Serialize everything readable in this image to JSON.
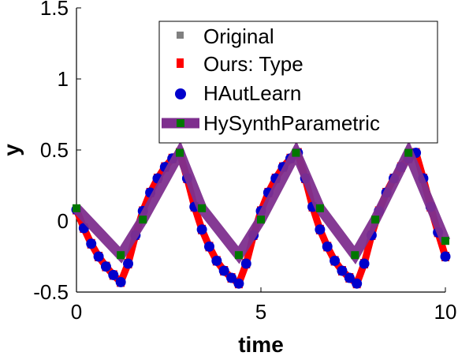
{
  "chart_data": {
    "type": "line",
    "title": "",
    "xlabel": "time",
    "ylabel": "y",
    "xlim": [
      0,
      10
    ],
    "ylim": [
      -0.5,
      1.5
    ],
    "xticks": [
      "0",
      "5",
      "10"
    ],
    "yticks": [
      "-0.5",
      "0",
      "0.5",
      "1",
      "1.5"
    ],
    "grid": false,
    "legend_position": "top-right",
    "series": [
      {
        "name": "Original",
        "color": "#808080",
        "marker": "square",
        "x": [
          0,
          0.2,
          0.4,
          0.6,
          0.8,
          1.0,
          1.2,
          1.4,
          1.6,
          1.8,
          2.0,
          2.2,
          2.4,
          2.6,
          2.8,
          3.0,
          3.2,
          3.4,
          3.6,
          3.8,
          4.0,
          4.2,
          4.4,
          4.6,
          4.8,
          5.0,
          5.2,
          5.4,
          5.6,
          5.8,
          6.0,
          6.2,
          6.4,
          6.6,
          6.8,
          7.0,
          7.2,
          7.4,
          7.6,
          7.8,
          8.0,
          8.2,
          8.4,
          8.6,
          8.8,
          9.0,
          9.2,
          9.4,
          9.6,
          9.8,
          10.0
        ],
        "y": [
          0.08,
          -0.05,
          -0.16,
          -0.25,
          -0.32,
          -0.38,
          -0.43,
          -0.3,
          -0.1,
          0.07,
          0.2,
          0.3,
          0.38,
          0.44,
          0.48,
          0.3,
          0.1,
          -0.06,
          -0.18,
          -0.28,
          -0.35,
          -0.4,
          -0.44,
          -0.3,
          -0.1,
          0.07,
          0.2,
          0.3,
          0.38,
          0.44,
          0.48,
          0.3,
          0.1,
          -0.06,
          -0.18,
          -0.28,
          -0.35,
          -0.4,
          -0.44,
          -0.3,
          -0.1,
          0.07,
          0.2,
          0.3,
          0.38,
          0.44,
          0.48,
          0.3,
          0.1,
          -0.08,
          -0.25
        ]
      },
      {
        "name": "Ours: Type",
        "color": "#ff0000",
        "marker": "square",
        "x": [
          0,
          0.2,
          0.4,
          0.6,
          0.8,
          1.0,
          1.2,
          1.4,
          1.6,
          1.8,
          2.0,
          2.2,
          2.4,
          2.6,
          2.8,
          3.0,
          3.2,
          3.4,
          3.6,
          3.8,
          4.0,
          4.2,
          4.4,
          4.6,
          4.8,
          5.0,
          5.2,
          5.4,
          5.6,
          5.8,
          6.0,
          6.2,
          6.4,
          6.6,
          6.8,
          7.0,
          7.2,
          7.4,
          7.6,
          7.8,
          8.0,
          8.2,
          8.4,
          8.6,
          8.8,
          9.0,
          9.2,
          9.4,
          9.6,
          9.8,
          10.0
        ],
        "y": [
          0.08,
          -0.05,
          -0.16,
          -0.25,
          -0.32,
          -0.38,
          -0.43,
          -0.3,
          -0.1,
          0.07,
          0.2,
          0.3,
          0.38,
          0.44,
          0.48,
          0.3,
          0.1,
          -0.06,
          -0.18,
          -0.28,
          -0.35,
          -0.4,
          -0.44,
          -0.3,
          -0.1,
          0.07,
          0.2,
          0.3,
          0.38,
          0.44,
          0.48,
          0.3,
          0.1,
          -0.06,
          -0.18,
          -0.28,
          -0.35,
          -0.4,
          -0.44,
          -0.3,
          -0.1,
          0.07,
          0.2,
          0.3,
          0.38,
          0.44,
          0.48,
          0.3,
          0.1,
          -0.08,
          -0.25
        ]
      },
      {
        "name": "HAutLearn",
        "color": "#0000cc",
        "marker": "circle",
        "x": [
          0,
          0.2,
          0.4,
          0.6,
          0.8,
          1.0,
          1.2,
          1.4,
          1.6,
          1.8,
          2.0,
          2.2,
          2.4,
          2.6,
          2.8,
          3.0,
          3.2,
          3.4,
          3.6,
          3.8,
          4.0,
          4.2,
          4.4,
          4.6,
          4.8,
          5.0,
          5.2,
          5.4,
          5.6,
          5.8,
          6.0,
          6.2,
          6.4,
          6.6,
          6.8,
          7.0,
          7.2,
          7.4,
          7.6,
          7.8,
          8.0,
          8.2,
          8.4,
          8.6,
          8.8,
          9.0,
          9.2,
          9.4,
          9.6,
          9.8,
          10.0
        ],
        "y": [
          0.08,
          -0.05,
          -0.16,
          -0.25,
          -0.32,
          -0.38,
          -0.43,
          -0.3,
          -0.1,
          0.07,
          0.2,
          0.3,
          0.38,
          0.44,
          0.48,
          0.3,
          0.1,
          -0.06,
          -0.18,
          -0.28,
          -0.35,
          -0.4,
          -0.44,
          -0.3,
          -0.1,
          0.07,
          0.2,
          0.3,
          0.38,
          0.44,
          0.48,
          0.3,
          0.1,
          -0.06,
          -0.18,
          -0.28,
          -0.35,
          -0.4,
          -0.44,
          -0.3,
          -0.1,
          0.07,
          0.2,
          0.3,
          0.38,
          0.44,
          0.48,
          0.3,
          0.1,
          -0.08,
          -0.25
        ]
      },
      {
        "name": "HySynthParametric",
        "color": "#7e2f8e",
        "marker": "square",
        "marker_color": "#007700",
        "x": [
          0,
          1.2,
          1.8,
          2.8,
          3.4,
          4.4,
          5.0,
          5.95,
          6.6,
          7.55,
          8.1,
          9.0,
          10.0
        ],
        "y": [
          0.09,
          -0.24,
          0.01,
          0.48,
          0.09,
          -0.24,
          0.01,
          0.48,
          0.09,
          -0.24,
          0.01,
          0.48,
          -0.14
        ]
      }
    ]
  }
}
